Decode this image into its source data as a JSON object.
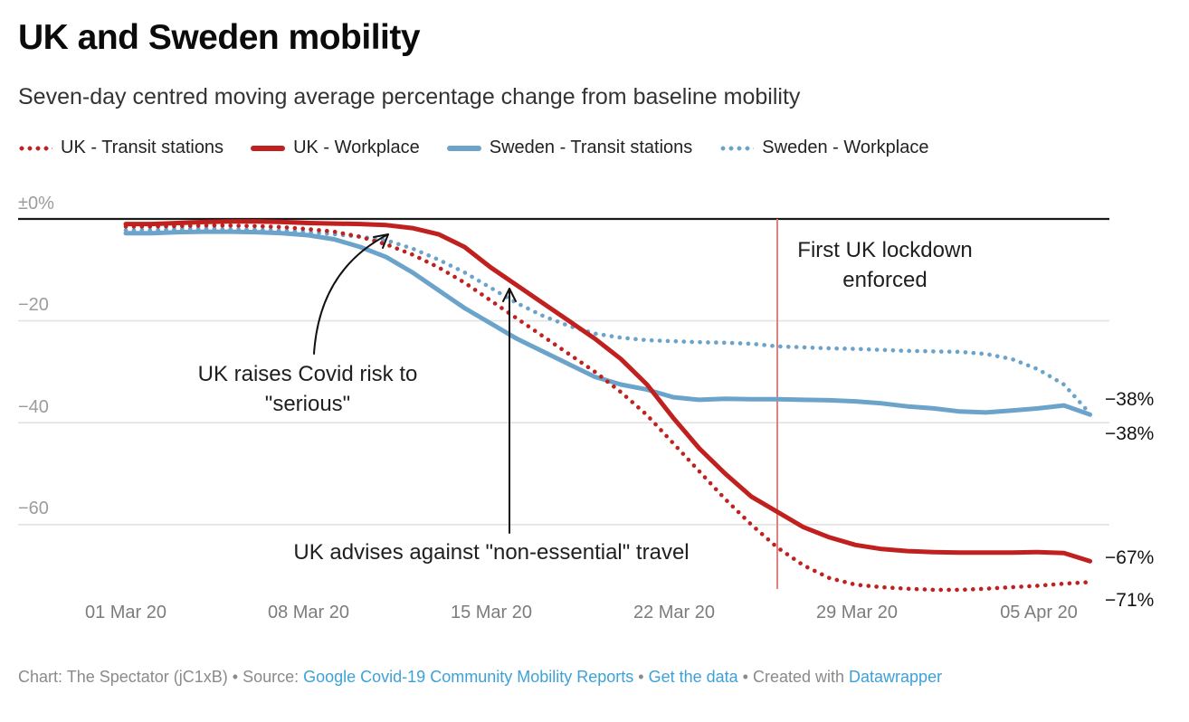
{
  "header": {
    "title": "UK and Sweden mobility",
    "subtitle": "Seven-day centred moving average percentage change from baseline mobility"
  },
  "legend": {
    "items": [
      {
        "label": "UK - Transit stations",
        "color": "#c0211f",
        "line": "dotted"
      },
      {
        "label": "UK - Workplace",
        "color": "#c0211f",
        "line": "solid"
      },
      {
        "label": "Sweden - Transit stations",
        "color": "#6ba3cb",
        "line": "solid"
      },
      {
        "label": "Sweden - Workplace",
        "color": "#6ba3cb",
        "line": "dotted"
      }
    ]
  },
  "chart_data": {
    "type": "line",
    "title": "UK and Sweden mobility",
    "subtitle": "Seven-day centred moving average percentage change from baseline mobility",
    "grid": "horizontal",
    "legend_position": "top",
    "ylim": [
      -75,
      2
    ],
    "y_ticks": [
      {
        "value": 0,
        "label": "±0%"
      },
      {
        "value": -20,
        "label": "−20"
      },
      {
        "value": -40,
        "label": "−40"
      },
      {
        "value": -60,
        "label": "−60"
      }
    ],
    "x_tick_labels": [
      "01 Mar 20",
      "08 Mar 20",
      "15 Mar 20",
      "22 Mar 20",
      "29 Mar 20",
      "05 Apr 20"
    ],
    "x_dates": [
      "01 Mar 20",
      "02 Mar 20",
      "03 Mar 20",
      "04 Mar 20",
      "05 Mar 20",
      "06 Mar 20",
      "07 Mar 20",
      "08 Mar 20",
      "09 Mar 20",
      "10 Mar 20",
      "11 Mar 20",
      "12 Mar 20",
      "13 Mar 20",
      "14 Mar 20",
      "15 Mar 20",
      "16 Mar 20",
      "17 Mar 20",
      "18 Mar 20",
      "19 Mar 20",
      "20 Mar 20",
      "21 Mar 20",
      "22 Mar 20",
      "23 Mar 20",
      "24 Mar 20",
      "25 Mar 20",
      "26 Mar 20",
      "27 Mar 20",
      "28 Mar 20",
      "29 Mar 20",
      "30 Mar 20",
      "31 Mar 20",
      "01 Apr 20",
      "02 Apr 20",
      "03 Apr 20",
      "04 Apr 20",
      "05 Apr 20",
      "06 Apr 20",
      "07 Apr 20"
    ],
    "series": [
      {
        "name": "UK - Transit stations",
        "color": "#c0211f",
        "line": "dotted",
        "end_label": "−71%",
        "values": [
          -1.5,
          -1.5,
          -1.4,
          -1.3,
          -1.3,
          -1.4,
          -1.6,
          -2,
          -2.5,
          -3.5,
          -5,
          -7,
          -9.5,
          -12.5,
          -16,
          -19.5,
          -23,
          -26.5,
          -30,
          -34,
          -38.5,
          -44,
          -49.5,
          -55,
          -60,
          -64.5,
          -68,
          -70.5,
          -71.8,
          -72.3,
          -72.6,
          -72.8,
          -72.8,
          -72.6,
          -72.3,
          -72,
          -71.6,
          -71.3
        ]
      },
      {
        "name": "UK - Workplace",
        "color": "#c0211f",
        "line": "solid",
        "end_label": "−67%",
        "values": [
          -1,
          -1,
          -0.8,
          -0.6,
          -0.5,
          -0.5,
          -0.6,
          -0.8,
          -0.9,
          -1,
          -1.2,
          -1.8,
          -3,
          -5.5,
          -9.5,
          -13,
          -16.5,
          -20,
          -23.5,
          -27.5,
          -32.5,
          -39,
          -45,
          -50,
          -54.5,
          -57.5,
          -60.5,
          -62.5,
          -64,
          -64.8,
          -65.2,
          -65.4,
          -65.5,
          -65.5,
          -65.5,
          -65.4,
          -65.6,
          -67.2
        ]
      },
      {
        "name": "Sweden - Transit stations",
        "color": "#6ba3cb",
        "line": "solid",
        "end_label": "−38%",
        "values": [
          -2.8,
          -2.8,
          -2.6,
          -2.5,
          -2.5,
          -2.6,
          -2.8,
          -3.2,
          -4,
          -5.5,
          -7.5,
          -10.5,
          -14,
          -17.5,
          -20.5,
          -23.5,
          -26,
          -28.5,
          -31,
          -32.5,
          -33.5,
          -35,
          -35.5,
          -35.3,
          -35.4,
          -35.4,
          -35.5,
          -35.6,
          -35.8,
          -36.2,
          -36.8,
          -37.2,
          -37.8,
          -38,
          -37.6,
          -37.2,
          -36.6,
          -38.4
        ]
      },
      {
        "name": "Sweden - Workplace",
        "color": "#6ba3cb",
        "line": "dotted",
        "end_label": "−38%",
        "values": [
          -2.2,
          -2.2,
          -2,
          -1.9,
          -2,
          -2.1,
          -2.3,
          -2.6,
          -3,
          -3.5,
          -4.2,
          -5.8,
          -8,
          -10.5,
          -13.5,
          -16.5,
          -19,
          -21,
          -22.5,
          -23.3,
          -23.8,
          -24,
          -24.2,
          -24.3,
          -24.5,
          -25,
          -25.2,
          -25.4,
          -25.5,
          -25.7,
          -25.9,
          -26,
          -26.1,
          -26.5,
          -27.5,
          -29.5,
          -32.5,
          -38.2
        ]
      }
    ],
    "event_line": {
      "day_index": 25,
      "color": "#df817d"
    },
    "annotations": [
      {
        "id": "lockdown",
        "text": "First UK lockdown enforced"
      },
      {
        "id": "risk",
        "text": "UK raises Covid risk to \"serious\""
      },
      {
        "id": "travel",
        "text": "UK advises against \"non-essential\" travel"
      }
    ]
  },
  "footer": {
    "prefix": "Chart: The Spectator (jC1xB) • Source: ",
    "source_link": "Google Covid-19 Community Mobility Reports",
    "sep1": " • ",
    "data_link": "Get the data",
    "sep2": " • Created with ",
    "tool_link": "Datawrapper"
  }
}
